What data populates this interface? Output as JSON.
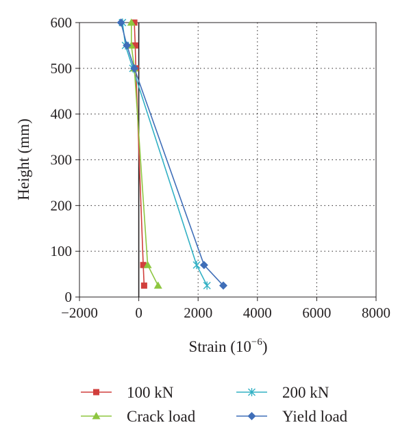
{
  "chart_data": {
    "type": "line",
    "title": "",
    "xlabel": "Strain (10",
    "xlabel_sup": "−6",
    "xlabel_close": ")",
    "ylabel": "Height (mm)",
    "xlim": [
      -2000,
      8000
    ],
    "ylim": [
      0,
      600
    ],
    "x_ticks": [
      -2000,
      0,
      2000,
      4000,
      6000,
      8000
    ],
    "x_tick_labels": [
      "−2000",
      "0",
      "2000",
      "4000",
      "6000",
      "8000"
    ],
    "y_ticks": [
      0,
      100,
      200,
      300,
      400,
      500,
      600
    ],
    "y_tick_labels": [
      "0",
      "100",
      "200",
      "300",
      "400",
      "500",
      "600"
    ],
    "grid": "dotted",
    "vertical_reference_line": 0,
    "legend_position": "bottom",
    "series": [
      {
        "name": "100 kN",
        "color": "#d13f3c",
        "marker": "square",
        "points": [
          [
            180,
            25
          ],
          [
            150,
            70
          ],
          [
            -100,
            500
          ],
          [
            -120,
            550
          ],
          [
            -150,
            600
          ]
        ]
      },
      {
        "name": "200 kN",
        "color": "#31b0c4",
        "marker": "asterisk",
        "points": [
          [
            2300,
            25
          ],
          [
            1950,
            70
          ],
          [
            -200,
            500
          ],
          [
            -450,
            550
          ],
          [
            -550,
            600
          ]
        ]
      },
      {
        "name": "Crack load",
        "color": "#8dc63f",
        "marker": "triangle",
        "points": [
          [
            650,
            25
          ],
          [
            300,
            70
          ],
          [
            -150,
            500
          ],
          [
            -250,
            550
          ],
          [
            -250,
            600
          ]
        ]
      },
      {
        "name": "Yield load",
        "color": "#3f6eb8",
        "marker": "diamond",
        "points": [
          [
            2850,
            25
          ],
          [
            2200,
            70
          ],
          [
            -150,
            500
          ],
          [
            -400,
            550
          ],
          [
            -600,
            600
          ]
        ]
      }
    ]
  }
}
